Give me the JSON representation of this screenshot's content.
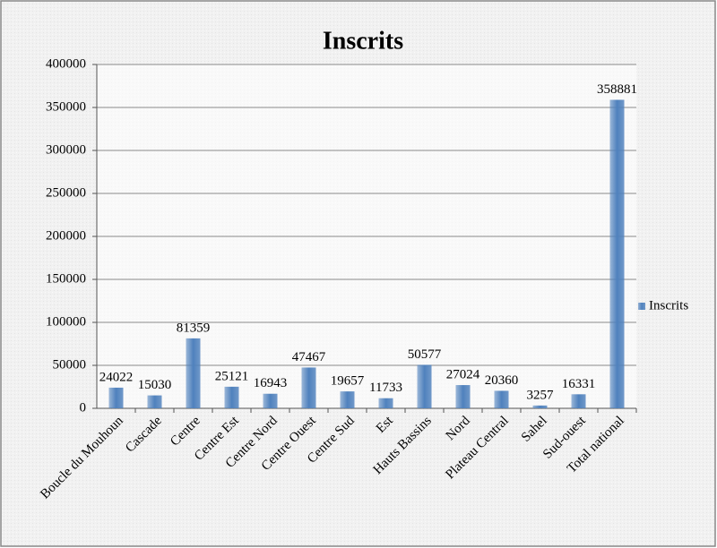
{
  "chart_data": {
    "type": "bar",
    "title": "Inscrits",
    "categories": [
      "Boucle du Mouhoun",
      "Cascade",
      "Centre",
      "Centre Est",
      "Centre Nord",
      "Centre Ouest",
      "Centre Sud",
      "Est",
      "Hauts Bassins",
      "Nord",
      "Plateau Central",
      "Sahel",
      "Sud-ouest",
      "Total national"
    ],
    "series": [
      {
        "name": "Inscrits",
        "color": "#4f81bd",
        "values": [
          24022,
          15030,
          81359,
          25121,
          16943,
          47467,
          19657,
          11733,
          50577,
          27024,
          20360,
          3257,
          16331,
          358881
        ]
      }
    ],
    "ylim": [
      0,
      400000
    ],
    "yticks": [
      0,
      50000,
      100000,
      150000,
      200000,
      250000,
      300000,
      350000,
      400000
    ],
    "grid": true,
    "legend": "right"
  }
}
